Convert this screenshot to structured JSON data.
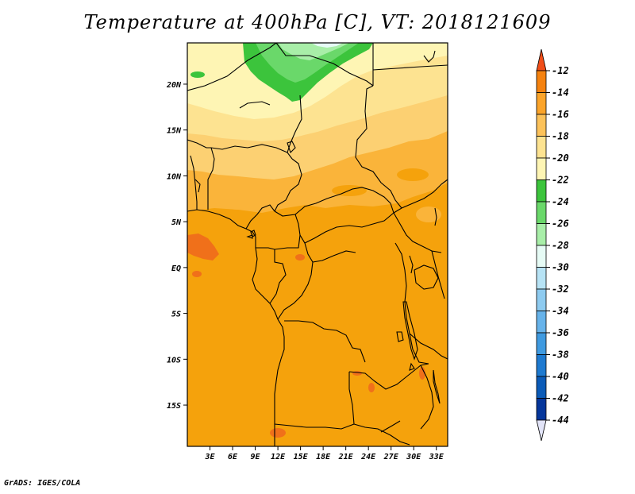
{
  "title": "Temperature at 400hPa [C], VT: 2018121609",
  "credit": "GrADS: IGES/COLA",
  "map": {
    "lat_labels": [
      "20N",
      "15N",
      "10N",
      "5N",
      "EQ",
      "5S",
      "10S",
      "15S"
    ],
    "lat_values": [
      20,
      15,
      10,
      5,
      0,
      -5,
      -10,
      -15
    ],
    "lon_labels": [
      "3E",
      "6E",
      "9E",
      "12E",
      "15E",
      "18E",
      "21E",
      "24E",
      "27E",
      "30E",
      "33E"
    ],
    "lon_values": [
      3,
      6,
      9,
      12,
      15,
      18,
      21,
      24,
      27,
      30,
      33
    ],
    "lon_range": [
      0,
      34.5
    ],
    "lat_range": [
      -19.5,
      24.5
    ]
  },
  "colorbar": {
    "labels": [
      "-12",
      "-14",
      "-16",
      "-18",
      "-20",
      "-22",
      "-24",
      "-26",
      "-28",
      "-30",
      "-32",
      "-34",
      "-36",
      "-38",
      "-40",
      "-42",
      "-44"
    ],
    "colors": [
      "#f04e19",
      "#f5820f",
      "#fba42a",
      "#fcc25a",
      "#fde391",
      "#fef5b4",
      "#3cc43c",
      "#6ad86a",
      "#a8eea8",
      "#e6fbf5",
      "#b7e3f5",
      "#8ecbf0",
      "#67b3ea",
      "#3f9ae0",
      "#1e7ad0",
      "#0b5bb8",
      "#05369b",
      "#0a1470",
      "#e2e4f8"
    ]
  }
}
